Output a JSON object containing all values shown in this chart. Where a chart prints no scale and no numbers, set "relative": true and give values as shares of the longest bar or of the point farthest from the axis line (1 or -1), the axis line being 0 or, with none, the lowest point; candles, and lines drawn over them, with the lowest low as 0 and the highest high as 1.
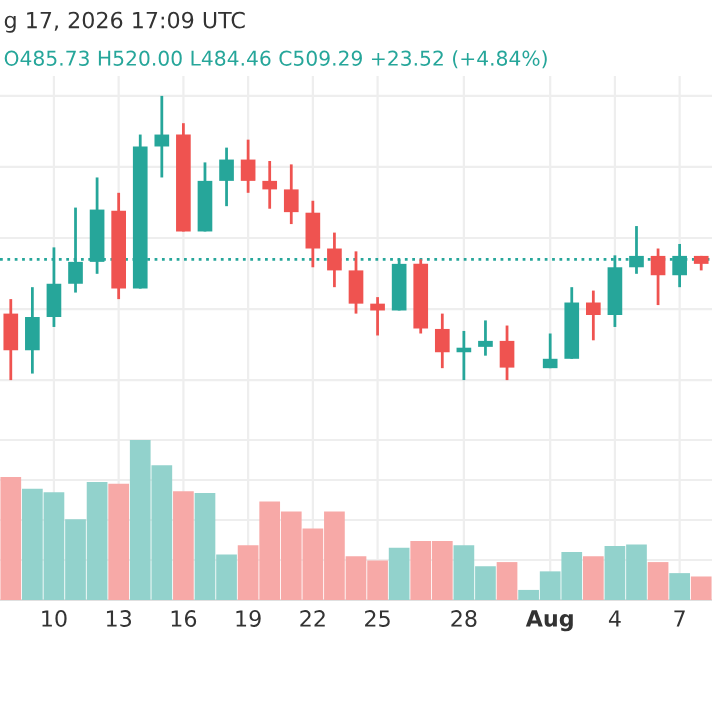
{
  "chart_data": [
    {
      "type": "candlestick",
      "title": "g 17, 2026 17:09 UTC",
      "subtitle": "O485.73 H520.00 L484.46 C509.29 +23.52 (+4.84%)",
      "relative": true,
      "grid": true,
      "tick_labels": false,
      "ohlc": [
        [
          0.234,
          0.285,
          0,
          0.105
        ],
        [
          0.105,
          0.327,
          0.023,
          0.222
        ],
        [
          0.222,
          0.467,
          0.187,
          0.339
        ],
        [
          0.339,
          0.607,
          0.308,
          0.416
        ],
        [
          0.416,
          0.713,
          0.374,
          0.6
        ],
        [
          0.596,
          0.659,
          0.285,
          0.322
        ],
        [
          0.322,
          0.864,
          0.322,
          0.822
        ],
        [
          0.822,
          1.0,
          0.713,
          0.864
        ],
        [
          0.864,
          0.904,
          0.523,
          0.523
        ],
        [
          0.523,
          0.766,
          0.523,
          0.701
        ],
        [
          0.701,
          0.818,
          0.612,
          0.776
        ],
        [
          0.776,
          0.846,
          0.659,
          0.701
        ],
        [
          0.701,
          0.771,
          0.603,
          0.671
        ],
        [
          0.671,
          0.759,
          0.549,
          0.591
        ],
        [
          0.589,
          0.631,
          0.397,
          0.463
        ],
        [
          0.463,
          0.519,
          0.327,
          0.386
        ],
        [
          0.386,
          0.453,
          0.234,
          0.269
        ],
        [
          0.269,
          0.292,
          0.157,
          0.245
        ],
        [
          0.245,
          0.425,
          0.245,
          0.409
        ],
        [
          0.409,
          0.425,
          0.164,
          0.182
        ],
        [
          0.18,
          0.234,
          0.042,
          0.098
        ],
        [
          0.098,
          0.173,
          0,
          0.114
        ],
        [
          0.117,
          0.21,
          0.086,
          0.138
        ],
        [
          0.138,
          0.192,
          0,
          0.044
        ],
        null,
        [
          0.042,
          0.164,
          0.042,
          0.075
        ],
        [
          0.075,
          0.327,
          0.075,
          0.273
        ],
        [
          0.273,
          0.315,
          0.14,
          0.229
        ],
        [
          0.229,
          0.439,
          0.187,
          0.397
        ],
        [
          0.397,
          0.542,
          0.374,
          0.437
        ],
        [
          0.437,
          0.463,
          0.264,
          0.369
        ],
        [
          0.369,
          0.479,
          0.327,
          0.437
        ],
        [
          0.437,
          0.437,
          0.386,
          0.409
        ]
      ],
      "colors": [
        "#ef5350",
        "#26a69a",
        "#26a69a",
        "#26a69a",
        "#26a69a",
        "#ef5350",
        "#26a69a",
        "#26a69a",
        "#ef5350",
        "#26a69a",
        "#26a69a",
        "#ef5350",
        "#ef5350",
        "#ef5350",
        "#ef5350",
        "#ef5350",
        "#ef5350",
        "#ef5350",
        "#26a69a",
        "#ef5350",
        "#ef5350",
        "#26a69a",
        "#26a69a",
        "#ef5350",
        "#26a69a",
        "#26a69a",
        "#26a69a",
        "#ef5350",
        "#26a69a",
        "#26a69a",
        "#ef5350",
        "#26a69a",
        "#ef5350"
      ],
      "ref_lines": [
        {
          "axis": "y",
          "value": 0.425,
          "color": "#26a69a",
          "line_style": "dotted"
        }
      ]
    },
    {
      "type": "bar",
      "relative": true,
      "grid": true,
      "tick_labels": "x",
      "categories": [
        null,
        null,
        "10",
        null,
        null,
        "13",
        null,
        null,
        "16",
        null,
        null,
        "19",
        null,
        null,
        "22",
        null,
        null,
        "25",
        null,
        null,
        null,
        "28",
        null,
        null,
        null,
        "Aug",
        null,
        null,
        "4",
        null,
        null,
        "7",
        null
      ],
      "values": [
        0.768,
        0.695,
        0.674,
        0.505,
        0.737,
        0.726,
        1,
        0.842,
        0.679,
        0.668,
        0.284,
        0.342,
        0.616,
        0.553,
        0.447,
        0.553,
        0.274,
        0.247,
        0.326,
        0.368,
        0.368,
        0.342,
        0.211,
        0.237,
        0.063,
        0.179,
        0.3,
        0.274,
        0.337,
        0.347,
        0.237,
        0.168,
        0.147
      ],
      "colors": [
        "#f7a9a7",
        "#92d2cc",
        "#92d2cc",
        "#92d2cc",
        "#92d2cc",
        "#f7a9a7",
        "#92d2cc",
        "#92d2cc",
        "#f7a9a7",
        "#92d2cc",
        "#92d2cc",
        "#f7a9a7",
        "#f7a9a7",
        "#f7a9a7",
        "#f7a9a7",
        "#f7a9a7",
        "#f7a9a7",
        "#f7a9a7",
        "#92d2cc",
        "#f7a9a7",
        "#f7a9a7",
        "#92d2cc",
        "#92d2cc",
        "#f7a9a7",
        "#92d2cc",
        "#92d2cc",
        "#92d2cc",
        "#f7a9a7",
        "#92d2cc",
        "#92d2cc",
        "#f7a9a7",
        "#92d2cc",
        "#f7a9a7"
      ]
    }
  ]
}
